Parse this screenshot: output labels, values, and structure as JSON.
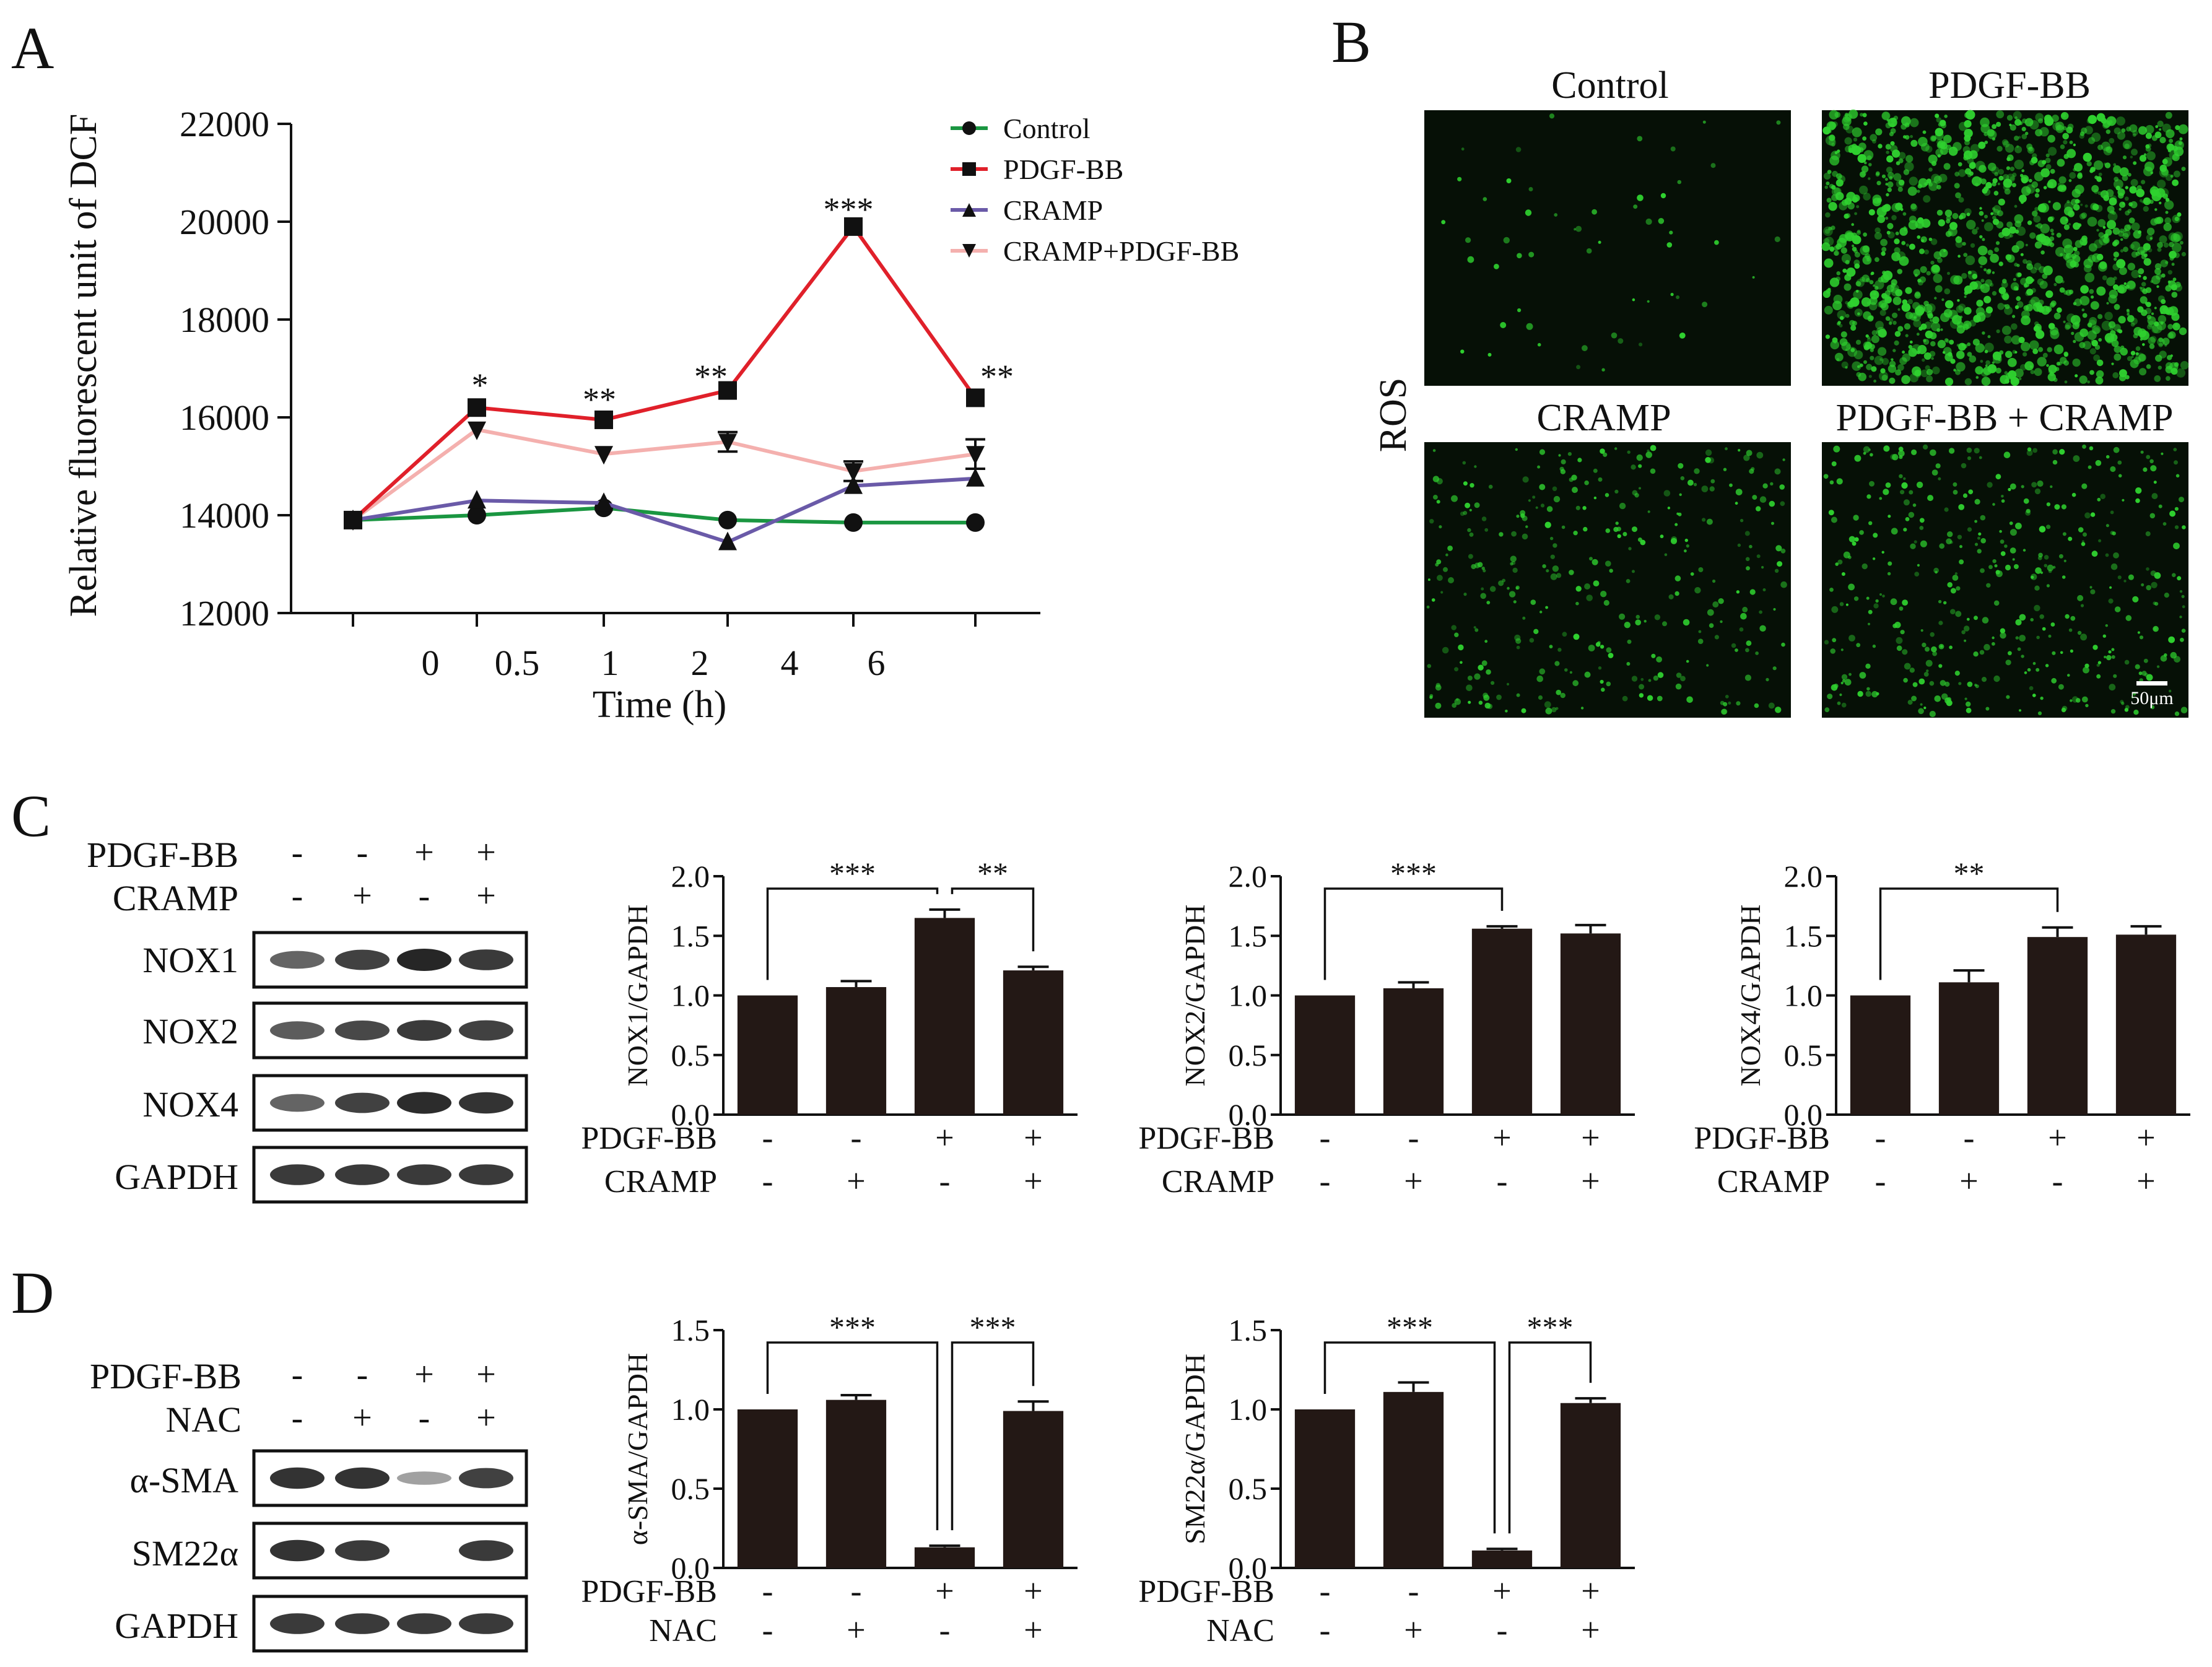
{
  "colors": {
    "control": "#1a9641",
    "pdgf": "#e0202a",
    "cramp": "#6a5aa8",
    "cramp_pdgf": "#f4b0ae",
    "bar": "#231815",
    "micro_bg": "#061006",
    "micro_cell": "#2fd12f"
  },
  "panel_a": {
    "letter": "A",
    "legend": [
      "Control",
      "PDGF-BB",
      "CRAMP",
      "CRAMP+PDGF-BB"
    ],
    "significance": [
      "*",
      "**",
      "**",
      "***",
      "**"
    ]
  },
  "panel_b": {
    "letter": "B",
    "row_label": "ROS",
    "titles": [
      "Control",
      "PDGF-BB",
      "CRAMP",
      "PDGF-BB + CRAMP"
    ],
    "scale_bar": "50μm",
    "intensity": [
      0.04,
      1.0,
      0.25,
      0.32
    ]
  },
  "panel_c": {
    "letter": "C",
    "blot_rows": [
      "PDGF-BB",
      "CRAMP"
    ],
    "blot_signs": [
      [
        "-",
        "-",
        "+",
        "+"
      ],
      [
        "-",
        "+",
        "-",
        "+"
      ]
    ],
    "blot_bands": [
      "NOX1",
      "NOX2",
      "NOX4",
      "GAPDH"
    ]
  },
  "panel_d": {
    "letter": "D",
    "blot_rows": [
      "PDGF-BB",
      "NAC"
    ],
    "blot_signs": [
      [
        "-",
        "-",
        "+",
        "+"
      ],
      [
        "-",
        "+",
        "-",
        "+"
      ]
    ],
    "blot_bands": [
      "α-SMA",
      "SM22α",
      "GAPDH"
    ]
  },
  "chart_data": [
    {
      "type": "line",
      "panel": "A",
      "x": [
        "0",
        "0.5",
        "1",
        "2",
        "4",
        "6"
      ],
      "xlabel": "Time (h)",
      "ylabel": "Relative fluorescent unit of DCF",
      "ylim": [
        12000,
        22000
      ],
      "yticks": [
        "12000",
        "14000",
        "16000",
        "18000",
        "20000",
        "22000"
      ],
      "legend_position": "top-right",
      "series": [
        {
          "name": "Control",
          "marker": "circle",
          "values": [
            13900,
            14000,
            14150,
            13900,
            13850,
            13850
          ],
          "err": [
            0,
            0,
            0,
            0,
            0,
            0
          ]
        },
        {
          "name": "PDGF-BB",
          "marker": "square",
          "values": [
            13900,
            16200,
            15950,
            16550,
            19900,
            16400
          ],
          "err": [
            0,
            0,
            0,
            0,
            0,
            0
          ]
        },
        {
          "name": "CRAMP",
          "marker": "triangle-up",
          "values": [
            13900,
            14300,
            14250,
            13450,
            14600,
            14750
          ],
          "err": [
            0,
            0,
            0,
            0,
            0,
            0
          ]
        },
        {
          "name": "CRAMP+PDGF-BB",
          "marker": "triangle-down",
          "values": [
            13900,
            15750,
            15250,
            15500,
            14900,
            15250
          ],
          "err": [
            0,
            0,
            0,
            200,
            200,
            300
          ]
        }
      ]
    },
    {
      "type": "bar",
      "panel": "C",
      "ylabel": "NOX1/GAPDH",
      "ylim": [
        0,
        2.0
      ],
      "yticks": [
        "0.0",
        "0.5",
        "1.0",
        "1.5",
        "2.0"
      ],
      "values": [
        1.0,
        1.07,
        1.65,
        1.21
      ],
      "err": [
        0.0,
        0.05,
        0.07,
        0.03
      ],
      "cond_labels": [
        "PDGF-BB",
        "CRAMP"
      ],
      "conditions": [
        [
          "-",
          "-",
          "+",
          "+"
        ],
        [
          "-",
          "+",
          "-",
          "+"
        ]
      ],
      "brackets": [
        {
          "from": 0,
          "to": 2,
          "label": "***"
        },
        {
          "from": 2,
          "to": 3,
          "label": "**"
        }
      ]
    },
    {
      "type": "bar",
      "panel": "C",
      "ylabel": "NOX2/GAPDH",
      "ylim": [
        0,
        2.0
      ],
      "yticks": [
        "0.0",
        "0.5",
        "1.0",
        "1.5",
        "2.0"
      ],
      "values": [
        1.0,
        1.06,
        1.56,
        1.52
      ],
      "err": [
        0.0,
        0.05,
        0.02,
        0.07
      ],
      "cond_labels": [
        "PDGF-BB",
        "CRAMP"
      ],
      "conditions": [
        [
          "-",
          "-",
          "+",
          "+"
        ],
        [
          "-",
          "+",
          "-",
          "+"
        ]
      ],
      "brackets": [
        {
          "from": 0,
          "to": 2,
          "label": "***"
        }
      ]
    },
    {
      "type": "bar",
      "panel": "C",
      "ylabel": "NOX4/GAPDH",
      "ylim": [
        0,
        2.0
      ],
      "yticks": [
        "0.0",
        "0.5",
        "1.0",
        "1.5",
        "2.0"
      ],
      "values": [
        1.0,
        1.11,
        1.49,
        1.51
      ],
      "err": [
        0.0,
        0.1,
        0.08,
        0.07
      ],
      "cond_labels": [
        "PDGF-BB",
        "CRAMP"
      ],
      "conditions": [
        [
          "-",
          "-",
          "+",
          "+"
        ],
        [
          "-",
          "+",
          "-",
          "+"
        ]
      ],
      "brackets": [
        {
          "from": 0,
          "to": 2,
          "label": "**"
        }
      ]
    },
    {
      "type": "bar",
      "panel": "D",
      "ylabel": "α-SMA/GAPDH",
      "ylim": [
        0,
        1.5
      ],
      "yticks": [
        "0.0",
        "0.5",
        "1.0",
        "1.5"
      ],
      "values": [
        1.0,
        1.06,
        0.13,
        0.99
      ],
      "err": [
        0.0,
        0.03,
        0.01,
        0.06
      ],
      "cond_labels": [
        "PDGF-BB",
        "NAC"
      ],
      "conditions": [
        [
          "-",
          "-",
          "+",
          "+"
        ],
        [
          "-",
          "+",
          "-",
          "+"
        ]
      ],
      "brackets": [
        {
          "from": 0,
          "to": 2,
          "label": "***"
        },
        {
          "from": 2,
          "to": 3,
          "label": "***"
        }
      ]
    },
    {
      "type": "bar",
      "panel": "D",
      "ylabel": "SM22α/GAPDH",
      "ylim": [
        0,
        1.5
      ],
      "yticks": [
        "0.0",
        "0.5",
        "1.0",
        "1.5"
      ],
      "values": [
        1.0,
        1.11,
        0.11,
        1.04
      ],
      "err": [
        0.0,
        0.06,
        0.01,
        0.03
      ],
      "cond_labels": [
        "PDGF-BB",
        "NAC"
      ],
      "conditions": [
        [
          "-",
          "-",
          "+",
          "+"
        ],
        [
          "-",
          "+",
          "-",
          "+"
        ]
      ],
      "brackets": [
        {
          "from": 0,
          "to": 2,
          "label": "***"
        },
        {
          "from": 2,
          "to": 3,
          "label": "***"
        }
      ]
    }
  ]
}
